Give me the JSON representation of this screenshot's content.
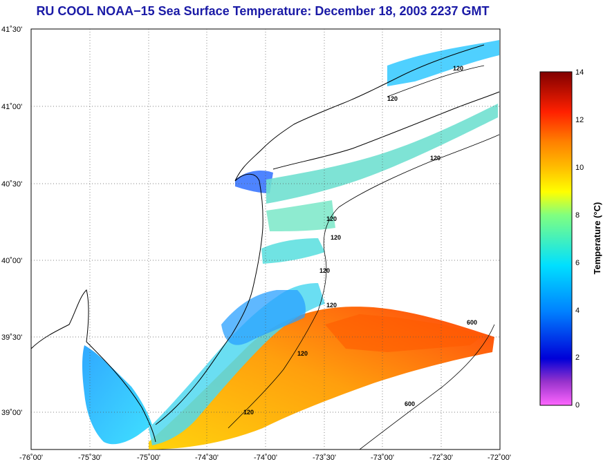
{
  "title": "RU COOL  NOAA−15  Sea Surface Temperature:  December 18, 2003 2237 GMT",
  "map": {
    "lon_ticks": [
      "-76˚00'",
      "-75˚30'",
      "-75˚00'",
      "-74˚30'",
      "-74˚00'",
      "-73˚30'",
      "-73˚00'",
      "-72˚30'",
      "-72˚00'"
    ],
    "lat_ticks": [
      "41˚30'",
      "41˚00'",
      "40˚30'",
      "40˚00'",
      "39˚30'",
      "39˚00'"
    ],
    "contour_labels": [
      "120",
      "120",
      "120",
      "120",
      "120",
      "120",
      "120",
      "120",
      "120",
      "600",
      "600"
    ]
  },
  "colorbar": {
    "title": "Temperature (°C)",
    "ticks": [
      "14",
      "12",
      "10",
      "8",
      "6",
      "4",
      "2",
      "0"
    ],
    "colors": [
      "#ff66ff",
      "#0000d8",
      "#0080ff",
      "#00e0ff",
      "#80ff80",
      "#ffff00",
      "#ff8000",
      "#ff0000",
      "#800000"
    ]
  }
}
